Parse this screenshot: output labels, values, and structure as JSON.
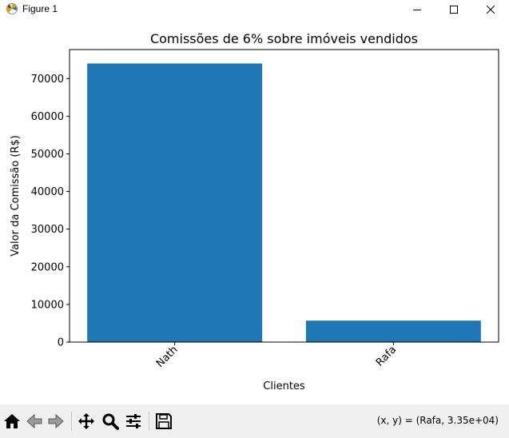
{
  "window": {
    "title": "Figure 1"
  },
  "toolbar": {
    "buttons": [
      "home-icon",
      "back-icon",
      "forward-icon",
      "pan-icon",
      "zoom-icon",
      "configure-subplots-icon",
      "save-icon"
    ],
    "coords_text": "(x, y) = (Rafa, 3.35e+04)"
  },
  "colors": {
    "bar": "#1f77b4",
    "axes": "#000000",
    "toolbar_bg": "#f0f0f0"
  },
  "chart_data": {
    "type": "bar",
    "title": "Comissões de 6% sobre imóveis vendidos",
    "xlabel": "Clientes",
    "ylabel": "Valor da Comissão (R$)",
    "categories": [
      "Nath",
      "Rafa"
    ],
    "values": [
      74000,
      5700
    ],
    "ylim": [
      0,
      77700
    ],
    "yticks": [
      0,
      10000,
      20000,
      30000,
      40000,
      50000,
      60000,
      70000
    ],
    "ytick_labels": [
      "0",
      "10000",
      "20000",
      "30000",
      "40000",
      "50000",
      "60000",
      "70000"
    ],
    "xtick_rotation": 45,
    "grid": false,
    "legend": "none"
  }
}
